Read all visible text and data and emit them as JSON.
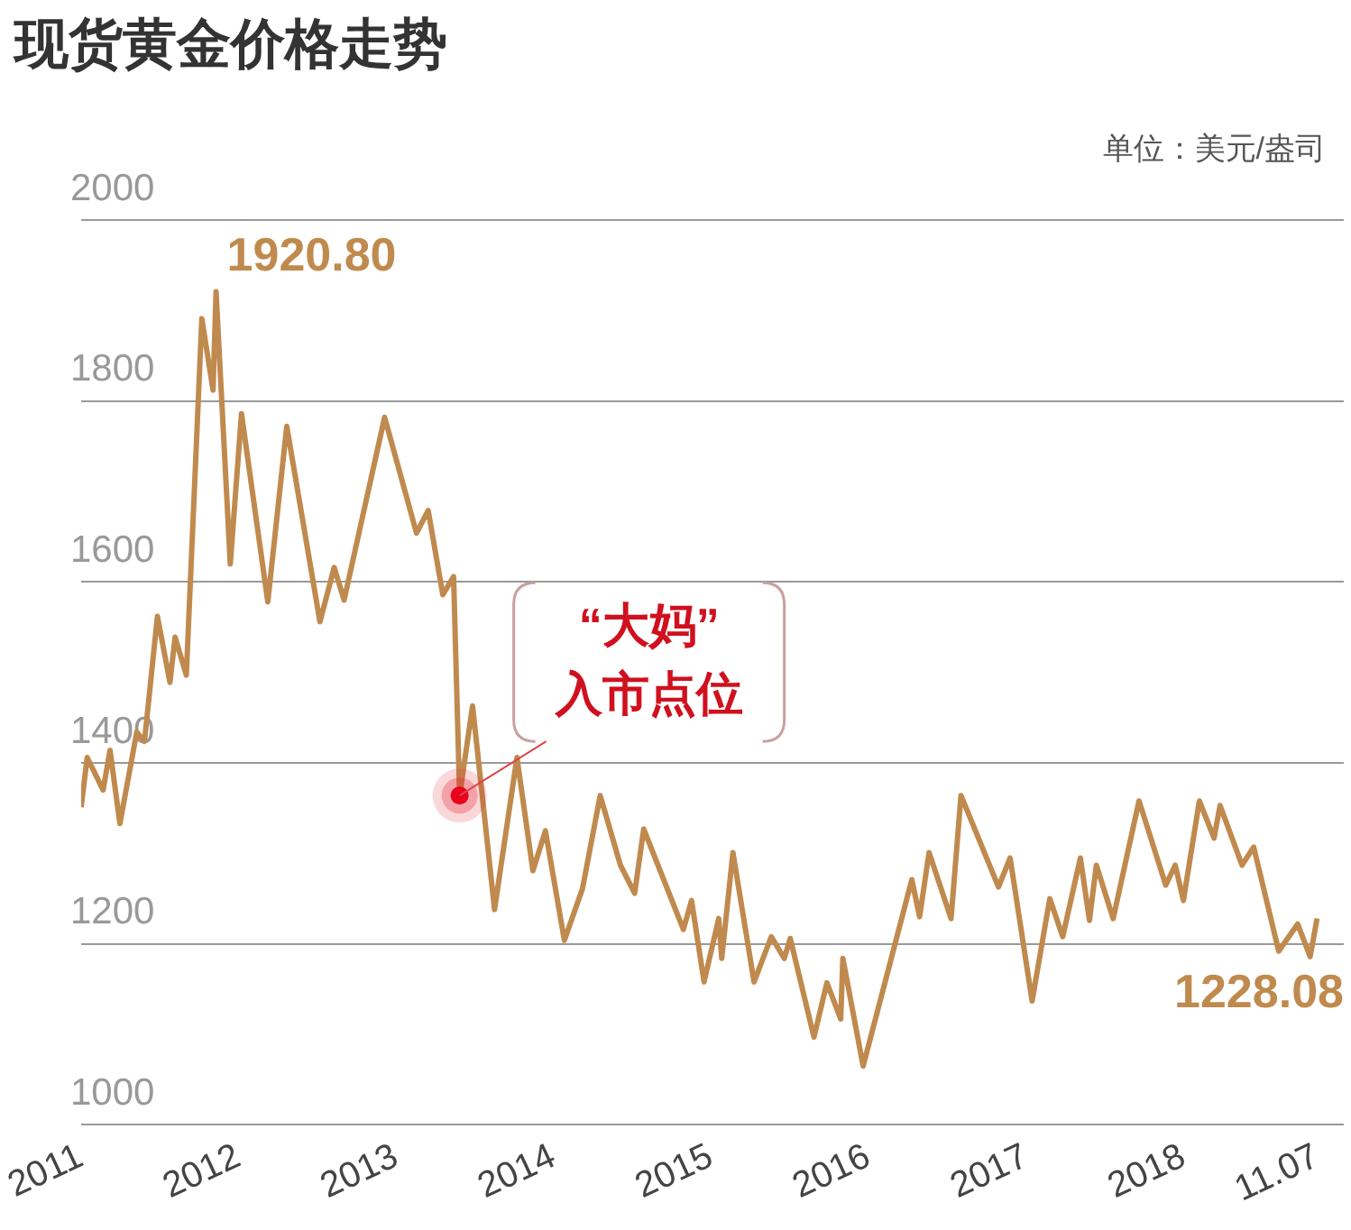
{
  "chart_data": {
    "type": "line",
    "title": "现货黄金价格走势",
    "ylabel": "单位：美元/盎司",
    "x": [
      "2011-01-01",
      "2011-01-15",
      "2011-02-21",
      "2011-03-09",
      "2011-04-01",
      "2011-05-10",
      "2011-05-28",
      "2011-06-27",
      "2011-07-26",
      "2011-08-07",
      "2011-09-02",
      "2011-10-08",
      "2011-11-03",
      "2011-11-10",
      "2011-12-13",
      "2012-01-08",
      "2012-03-09",
      "2012-04-22",
      "2012-07-08",
      "2012-08-10",
      "2012-09-02",
      "2012-12-05",
      "2013-02-17",
      "2013-03-16",
      "2013-04-19",
      "2013-05-14",
      "2013-05-28",
      "2013-06-27",
      "2013-08-17",
      "2013-10-08",
      "2013-11-14",
      "2013-12-13",
      "2014-01-26",
      "2014-03-09",
      "2014-04-19",
      "2014-06-05",
      "2014-07-08",
      "2014-07-29",
      "2014-10-29",
      "2014-11-17",
      "2014-12-16",
      "2015-01-19",
      "2015-01-26",
      "2015-02-21",
      "2015-04-11",
      "2015-05-21",
      "2015-06-20",
      "2015-07-04",
      "2015-08-28",
      "2015-09-27",
      "2015-10-29",
      "2015-11-03",
      "2015-12-20",
      "2016-04-11",
      "2016-04-29",
      "2016-05-21",
      "2016-07-11",
      "2016-08-03",
      "2016-10-29",
      "2016-11-25",
      "2017-01-15",
      "2017-02-25",
      "2017-03-27",
      "2017-05-07",
      "2017-05-28",
      "2017-06-13",
      "2017-07-22",
      "2017-09-20",
      "2017-11-21",
      "2017-12-13",
      "2018-01-01",
      "2018-02-07",
      "2018-03-13",
      "2018-03-27",
      "2018-05-17",
      "2018-06-13",
      "2018-08-10",
      "2018-09-23",
      "2018-10-22",
      "2018-11-07"
    ],
    "series": [
      {
        "color": "#c08a4e",
        "values": [
          1351,
          1406,
          1370,
          1414,
          1333,
          1434,
          1424,
          1562,
          1489,
          1539,
          1497,
          1891,
          1812,
          1920.8,
          1620,
          1786,
          1578,
          1772,
          1556,
          1616,
          1580,
          1782,
          1654,
          1679,
          1586,
          1606,
          1364,
          1463,
          1238,
          1406,
          1281,
          1325,
          1204,
          1261,
          1364,
          1287,
          1256,
          1327,
          1216,
          1248,
          1158,
          1228,
          1184,
          1301,
          1158,
          1208,
          1184,
          1206,
          1097,
          1157,
          1117,
          1184,
          1065,
          1271,
          1230,
          1301,
          1228,
          1364,
          1263,
          1295,
          1137,
          1250,
          1208,
          1295,
          1226,
          1287,
          1228,
          1358,
          1265,
          1287,
          1248,
          1358,
          1317,
          1353,
          1287,
          1307,
          1192,
          1222,
          1186,
          1228.08
        ],
        "value_labels": [
          null,
          null,
          null,
          null,
          null,
          null,
          null,
          null,
          null,
          null,
          null,
          null,
          null,
          "1920.80",
          null,
          null,
          null,
          null,
          null,
          null,
          null,
          null,
          null,
          null,
          null,
          null,
          null,
          null,
          null,
          null,
          null,
          null,
          null,
          null,
          null,
          null,
          null,
          null,
          null,
          null,
          null,
          null,
          null,
          null,
          null,
          null,
          null,
          null,
          null,
          null,
          null,
          null,
          null,
          null,
          null,
          null,
          null,
          null,
          null,
          null,
          null,
          null,
          null,
          null,
          null,
          null,
          null,
          null,
          null,
          null,
          null,
          null,
          null,
          null,
          null,
          null,
          null,
          null,
          null,
          "1228.08"
        ]
      }
    ],
    "xlim": [
      "2011-01-01",
      "2019-01-08"
    ],
    "xticks": [
      "2011",
      "2012",
      "2013",
      "2014",
      "2015",
      "2016",
      "2017",
      "2018",
      {
        "value": "2018-11-07",
        "label": "11.07"
      }
    ],
    "ylim": [
      1000,
      2000
    ],
    "yticks": [
      1000,
      1200,
      1400,
      1600,
      1800,
      2000
    ],
    "grid": "y",
    "marker": "none",
    "legend": false,
    "annotations": [
      {
        "text": "“大妈”\n入市点位",
        "x": "2013-05-28",
        "y": 1364
      }
    ]
  }
}
